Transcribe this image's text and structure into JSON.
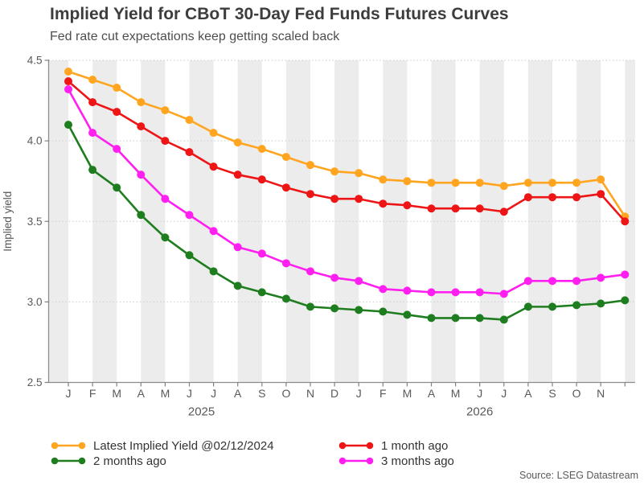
{
  "source": {
    "label": "Source: LSEG Datastream"
  },
  "chart_data": {
    "type": "line",
    "title": "Implied Yield for CBoT 30-Day Fed Funds Futures Curves",
    "subtitle": "Fed rate cut expectations keep getting scaled back",
    "xlabel": "",
    "ylabel": "Implied yield",
    "ylim": [
      2.5,
      4.5
    ],
    "yticks": [
      2.5,
      3.0,
      3.5,
      4.0,
      4.5
    ],
    "grid": "dotted-horizontal",
    "legend_position": "bottom",
    "months": [
      "J",
      "F",
      "M",
      "A",
      "M",
      "J",
      "J",
      "A",
      "S",
      "O",
      "N",
      "D",
      "J",
      "F",
      "M",
      "A",
      "M",
      "J",
      "J",
      "A",
      "S",
      "O",
      "N",
      ""
    ],
    "years": [
      {
        "label": "2025",
        "from": 0,
        "to": 11
      },
      {
        "label": "2026",
        "from": 12,
        "to": 22
      }
    ],
    "style": {
      "stripe_color": "#ececec",
      "grid_color": "#d6d6d6",
      "axis_color": "#8c8c8c",
      "tick_color": "#808080",
      "axis_text_color": "#595959"
    },
    "series": [
      {
        "name": "Latest Implied Yield @02/12/2024",
        "color": "#FFA520",
        "values": [
          4.43,
          4.38,
          4.33,
          4.24,
          4.19,
          4.13,
          4.05,
          3.99,
          3.95,
          3.9,
          3.85,
          3.81,
          3.8,
          3.76,
          3.75,
          3.74,
          3.74,
          3.74,
          3.72,
          3.74,
          3.74,
          3.74,
          3.76,
          3.53
        ]
      },
      {
        "name": "1 month ago",
        "color": "#ED1515",
        "values": [
          4.37,
          4.24,
          4.18,
          4.09,
          4.0,
          3.93,
          3.84,
          3.79,
          3.76,
          3.71,
          3.67,
          3.64,
          3.64,
          3.61,
          3.6,
          3.58,
          3.58,
          3.58,
          3.56,
          3.65,
          3.65,
          3.65,
          3.67,
          3.5
        ]
      },
      {
        "name": "2 months ago",
        "color": "#1E7D1E",
        "values": [
          4.1,
          3.82,
          3.71,
          3.54,
          3.4,
          3.29,
          3.19,
          3.1,
          3.06,
          3.02,
          2.97,
          2.96,
          2.95,
          2.94,
          2.92,
          2.9,
          2.9,
          2.9,
          2.89,
          2.97,
          2.97,
          2.98,
          2.99,
          3.01
        ]
      },
      {
        "name": "3 months ago",
        "color": "#FF1FF0",
        "values": [
          4.32,
          4.05,
          3.95,
          3.79,
          3.64,
          3.54,
          3.44,
          3.34,
          3.3,
          3.24,
          3.19,
          3.15,
          3.13,
          3.08,
          3.07,
          3.06,
          3.06,
          3.06,
          3.05,
          3.13,
          3.13,
          3.13,
          3.15,
          3.17
        ]
      }
    ]
  }
}
